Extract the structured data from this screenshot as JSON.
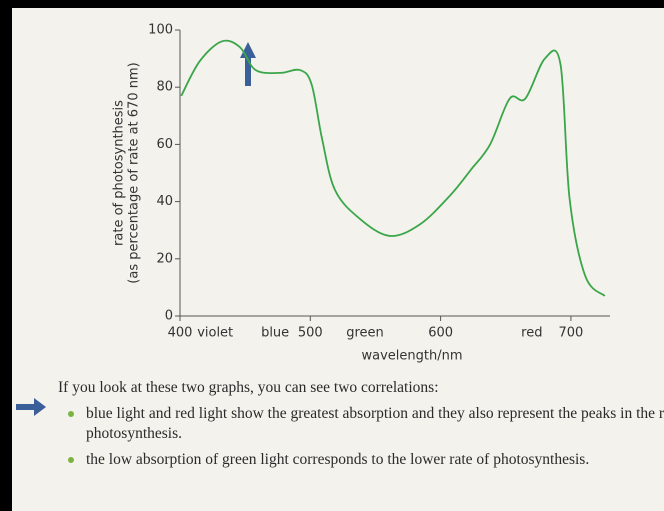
{
  "chart_data": {
    "type": "line",
    "ylabel": [
      "rate of photosynthesis",
      "(as percentage of rate at 670 nm)"
    ],
    "xlabel": "wavelength/nm",
    "x": [
      401,
      415,
      432,
      446,
      458,
      477,
      492,
      501,
      509,
      519,
      538,
      561,
      584,
      607,
      623,
      638,
      653,
      665,
      680,
      692,
      699,
      711,
      726
    ],
    "series": [
      {
        "color": "#3aa64a",
        "values": [
          77,
          89,
          96,
          94,
          86,
          85,
          86,
          81,
          62,
          44,
          34,
          28,
          32,
          42,
          51,
          60,
          76,
          76,
          90,
          88,
          41,
          14,
          7
        ]
      }
    ],
    "xlim": [
      400,
      730
    ],
    "ylim": [
      0,
      100
    ],
    "xticks": [
      400,
      {
        "value": 427,
        "label": "violet"
      },
      {
        "value": 473,
        "label": "blue"
      },
      500,
      {
        "value": 542,
        "label": "green"
      },
      600,
      {
        "value": 670,
        "label": "red"
      },
      700
    ],
    "yticks": [
      0,
      20,
      40,
      60,
      80,
      100
    ]
  },
  "text": {
    "intro": "If you look at these two graphs, you can see two correlations:",
    "bullets": [
      "blue light and red light show the greatest absorption and they also represent the peaks in the rate of photosynthesis.",
      "the low absorption of green light corresponds to the lower rate of photosynthesis."
    ]
  }
}
